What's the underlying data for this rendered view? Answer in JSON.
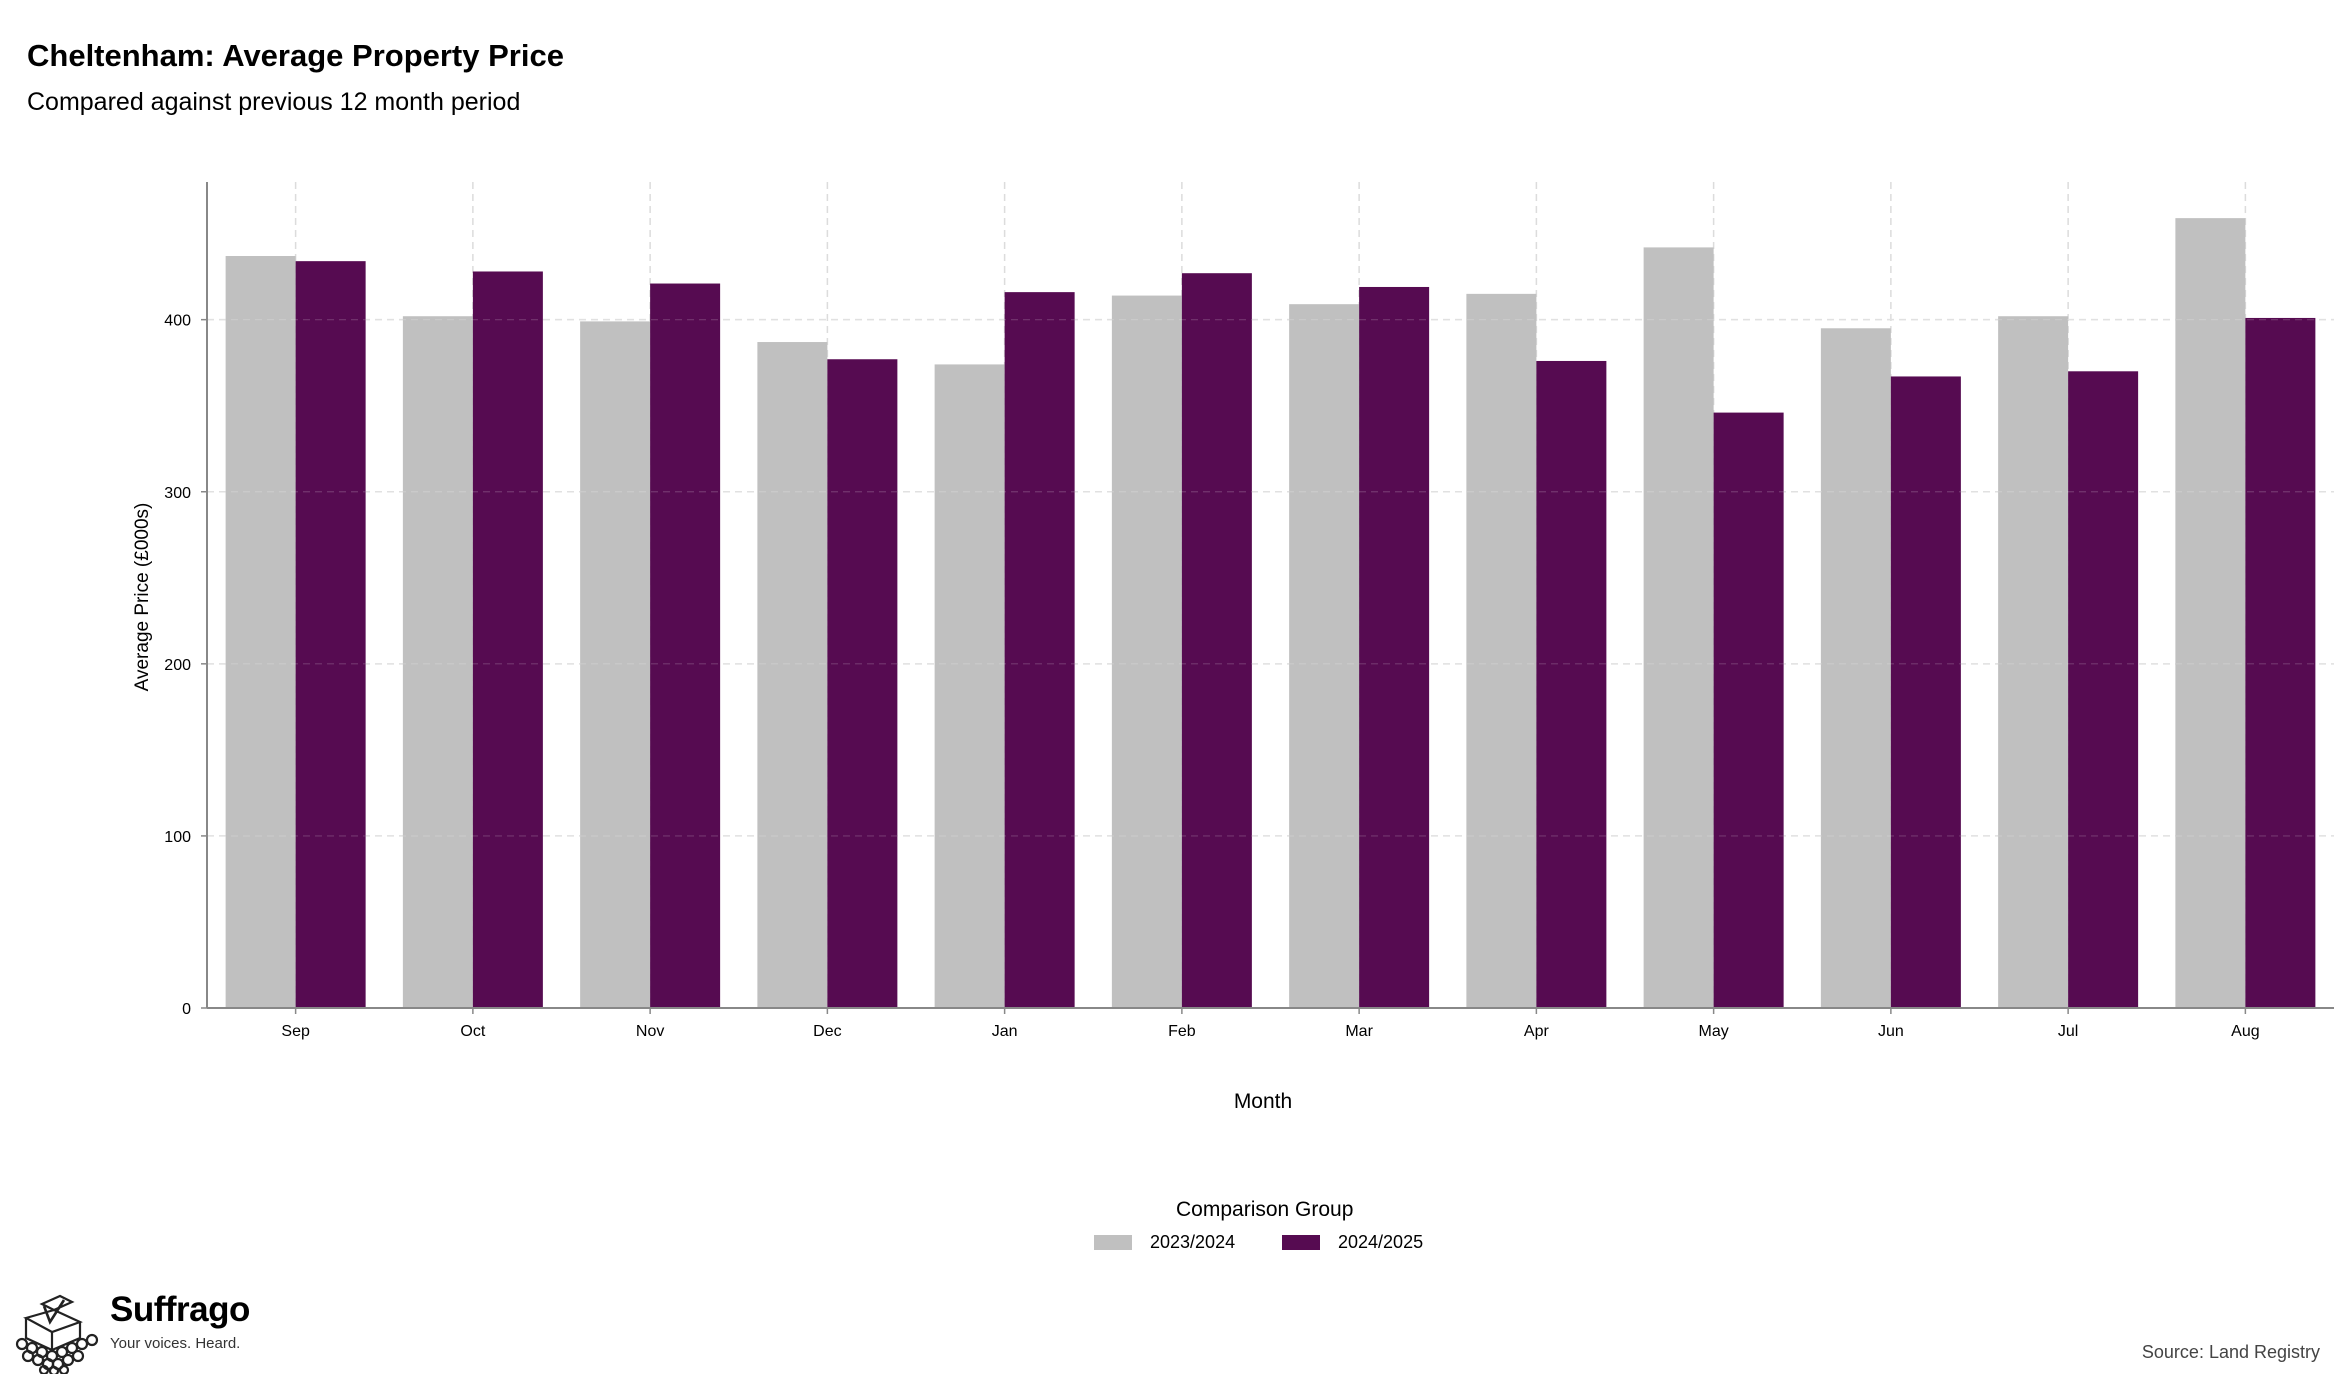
{
  "chart_data": {
    "type": "bar",
    "title": "Cheltenham: Average Property Price",
    "subtitle": "Compared against previous 12 month period",
    "xlabel": "Month",
    "ylabel": "Average Price (£000s)",
    "ylim": [
      0,
      480
    ],
    "yticks": [
      0,
      100,
      200,
      300,
      400
    ],
    "grid": true,
    "legend_title": "Comparison Group",
    "legend_position": "bottom",
    "categories": [
      "Sep",
      "Oct",
      "Nov",
      "Dec",
      "Jan",
      "Feb",
      "Mar",
      "Apr",
      "May",
      "Jun",
      "Jul",
      "Aug"
    ],
    "series": [
      {
        "name": "2023/2024",
        "color": "#c0c0c0",
        "values": [
          437,
          402,
          399,
          387,
          374,
          414,
          409,
          415,
          442,
          395,
          402,
          459
        ]
      },
      {
        "name": "2024/2025",
        "color": "#560b51",
        "values": [
          434,
          428,
          421,
          377,
          416,
          427,
          419,
          376,
          346,
          367,
          370,
          401
        ]
      }
    ]
  },
  "branding": {
    "name": "Suffrago",
    "tagline": "Your voices. Heard."
  },
  "source": "Source: Land Registry"
}
